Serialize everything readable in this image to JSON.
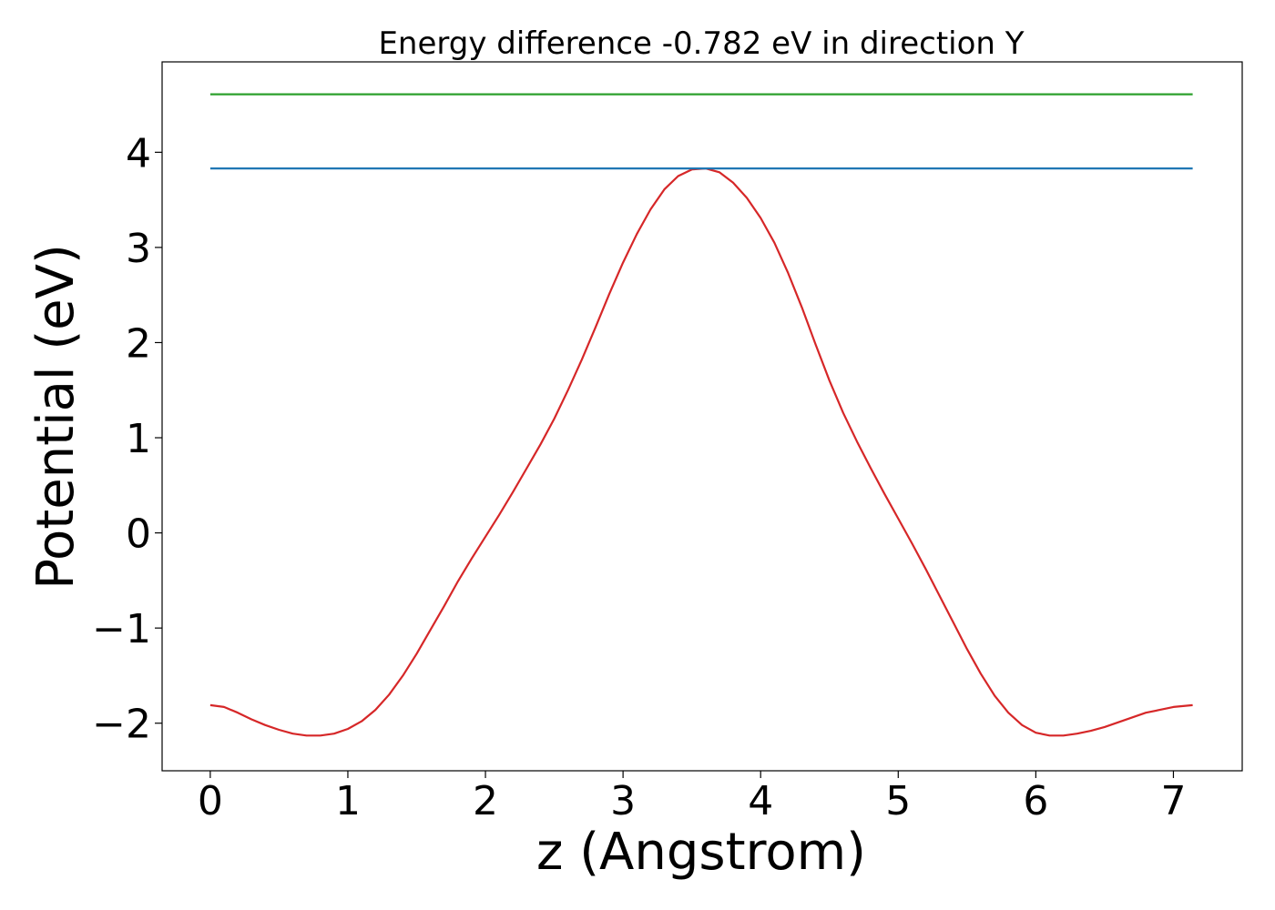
{
  "chart_data": {
    "type": "line",
    "title": "Energy difference -0.782 eV in direction Y",
    "xlabel": "z (Angstrom)",
    "ylabel": "Potential (eV)",
    "xlim": [
      -0.35,
      7.5
    ],
    "ylim": [
      -2.5,
      4.95
    ],
    "xticks": [
      0,
      1,
      2,
      3,
      4,
      5,
      6,
      7
    ],
    "yticks": [
      -2,
      -1,
      0,
      1,
      2,
      3,
      4
    ],
    "grid": false,
    "legend": "none",
    "series": [
      {
        "color": "#d62728",
        "x": [
          0,
          0.1,
          0.2,
          0.3,
          0.4,
          0.5,
          0.6,
          0.7,
          0.8,
          0.9,
          1.0,
          1.1,
          1.2,
          1.3,
          1.4,
          1.5,
          1.6,
          1.7,
          1.8,
          1.9,
          2.0,
          2.1,
          2.2,
          2.3,
          2.4,
          2.5,
          2.6,
          2.7,
          2.8,
          2.9,
          3.0,
          3.1,
          3.2,
          3.3,
          3.4,
          3.5,
          3.6,
          3.7,
          3.8,
          3.9,
          4.0,
          4.1,
          4.2,
          4.3,
          4.4,
          4.5,
          4.6,
          4.7,
          4.8,
          4.9,
          5.0,
          5.1,
          5.2,
          5.3,
          5.4,
          5.5,
          5.6,
          5.7,
          5.8,
          5.9,
          6.0,
          6.1,
          6.2,
          6.3,
          6.4,
          6.5,
          6.6,
          6.7,
          6.8,
          6.9,
          7.0,
          7.14
        ],
        "y": [
          -1.81,
          -1.83,
          -1.89,
          -1.96,
          -2.02,
          -2.07,
          -2.11,
          -2.13,
          -2.13,
          -2.11,
          -2.06,
          -1.98,
          -1.86,
          -1.7,
          -1.5,
          -1.27,
          -1.02,
          -0.77,
          -0.51,
          -0.27,
          -0.04,
          0.19,
          0.43,
          0.68,
          0.93,
          1.2,
          1.5,
          1.82,
          2.16,
          2.51,
          2.84,
          3.14,
          3.4,
          3.61,
          3.75,
          3.82,
          3.83,
          3.79,
          3.68,
          3.52,
          3.31,
          3.05,
          2.73,
          2.37,
          1.98,
          1.6,
          1.26,
          0.96,
          0.68,
          0.41,
          0.15,
          -0.11,
          -0.38,
          -0.66,
          -0.94,
          -1.22,
          -1.48,
          -1.71,
          -1.89,
          -2.02,
          -2.1,
          -2.13,
          -2.13,
          -2.11,
          -2.08,
          -2.04,
          -1.99,
          -1.94,
          -1.89,
          -1.86,
          -1.83,
          -1.81
        ]
      },
      {
        "color": "#1f77b4",
        "x": [
          0,
          7.14
        ],
        "y": [
          3.83,
          3.83
        ]
      },
      {
        "color": "#2ca02c",
        "x": [
          0,
          7.14
        ],
        "y": [
          4.61,
          4.61
        ]
      }
    ]
  }
}
